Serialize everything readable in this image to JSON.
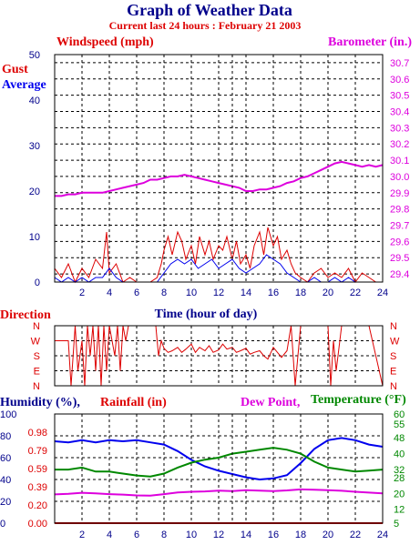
{
  "header": {
    "title": "Graph of Weather Data",
    "subtitle": "Current last 24 hours : February 21 2003"
  },
  "colors": {
    "navy": "#00008b",
    "red": "#dd0000",
    "blue": "#0000ee",
    "magenta": "#dd00dd",
    "green": "#008800"
  },
  "chart_data": [
    {
      "type": "line",
      "id": "wind",
      "label_left": "Windspeed (mph)",
      "label_right": "Barometer (in.)",
      "legend": [
        "Gust",
        "Average"
      ],
      "xlabel": "Time (hour of day)",
      "xlim": [
        0,
        24
      ],
      "x_ticks": [
        "2",
        "4",
        "6",
        "8",
        "10",
        "12",
        "14",
        "16",
        "18",
        "20",
        "22",
        "24"
      ],
      "ylim_left": [
        0,
        50
      ],
      "y_ticks_left": [
        "0",
        "10",
        "20",
        "30",
        "40",
        "50"
      ],
      "ylim_right": [
        29.35,
        30.75
      ],
      "y_ticks_right": [
        "29.4",
        "29.5",
        "29.6",
        "29.7",
        "29.8",
        "29.9",
        "30.0",
        "30.1",
        "30.2",
        "30.3",
        "30.4",
        "30.5",
        "30.6",
        "30.7"
      ],
      "grid": true,
      "now_marker_hour": 13,
      "series": [
        {
          "name": "Gust",
          "x": [
            0,
            0.5,
            1,
            1.5,
            2,
            2.5,
            3,
            3.5,
            3.8,
            4,
            4.5,
            5,
            5.5,
            6,
            6.5,
            7,
            7.5,
            7.8,
            8,
            8.3,
            8.6,
            9,
            9.3,
            9.6,
            10,
            10.3,
            10.6,
            11,
            11.3,
            11.6,
            12,
            12.3,
            12.6,
            13,
            13.3,
            13.6,
            14,
            14.3,
            14.6,
            15,
            15.3,
            15.6,
            16,
            16.3,
            16.6,
            17,
            17.3,
            17.6,
            18,
            18.5,
            19,
            19.5,
            20,
            20.5,
            21,
            21.5,
            22,
            22.5,
            23,
            23.5,
            24
          ],
          "values": [
            3,
            1,
            4,
            0,
            3,
            1,
            5,
            3,
            11,
            2,
            4,
            0,
            1,
            0,
            0,
            0,
            1,
            4,
            7,
            10,
            6,
            11,
            9,
            5,
            8,
            4,
            10,
            6,
            9,
            5,
            8,
            7,
            10,
            5,
            9,
            4,
            6,
            3,
            8,
            11,
            6,
            12,
            8,
            10,
            5,
            7,
            4,
            2,
            1,
            0,
            2,
            3,
            1,
            2,
            1,
            3,
            0,
            2,
            1,
            0,
            0
          ]
        },
        {
          "name": "Average",
          "x": [
            0,
            0.5,
            1,
            1.5,
            2,
            2.5,
            3,
            3.5,
            4,
            4.5,
            5,
            5.5,
            6,
            6.5,
            7,
            7.5,
            8,
            8.5,
            9,
            9.5,
            10,
            10.5,
            11,
            11.5,
            12,
            12.5,
            13,
            13.5,
            14,
            14.5,
            15,
            15.5,
            16,
            16.5,
            17,
            17.5,
            18,
            18.5,
            19,
            19.5,
            20,
            20.5,
            21,
            21.5,
            22,
            22.5,
            23,
            23.5,
            24
          ],
          "values": [
            1,
            0,
            1,
            0,
            1,
            0,
            1,
            1,
            3,
            1,
            0,
            0,
            0,
            0,
            0,
            0,
            2,
            4,
            5,
            4,
            5,
            3,
            4,
            5,
            3,
            4,
            5,
            3,
            2,
            3,
            4,
            6,
            5,
            4,
            2,
            1,
            0,
            0,
            1,
            0,
            0,
            1,
            0,
            1,
            0,
            0,
            0,
            0,
            0
          ]
        },
        {
          "name": "Barometer",
          "axis": "right",
          "x": [
            0,
            0.5,
            1,
            1.5,
            2,
            2.5,
            3,
            3.5,
            4,
            4.5,
            5,
            5.5,
            6,
            6.5,
            7,
            7.5,
            8,
            8.5,
            9,
            9.5,
            10,
            10.5,
            11,
            11.5,
            12,
            12.5,
            13,
            13.5,
            14,
            14.5,
            15,
            15.5,
            16,
            16.5,
            17,
            17.5,
            18,
            18.5,
            19,
            19.5,
            20,
            20.5,
            21,
            21.5,
            22,
            22.5,
            23,
            23.5,
            24
          ],
          "values": [
            29.88,
            29.88,
            29.89,
            29.89,
            29.9,
            29.9,
            29.9,
            29.9,
            29.91,
            29.92,
            29.93,
            29.94,
            29.95,
            29.96,
            29.98,
            29.98,
            29.99,
            30.0,
            30.0,
            30.01,
            30.0,
            29.99,
            29.98,
            29.97,
            29.96,
            29.95,
            29.94,
            29.93,
            29.91,
            29.91,
            29.92,
            29.92,
            29.93,
            29.94,
            29.96,
            29.97,
            29.99,
            30.0,
            30.02,
            30.04,
            30.06,
            30.08,
            30.09,
            30.08,
            30.07,
            30.06,
            30.07,
            30.06,
            30.07
          ]
        }
      ]
    },
    {
      "type": "line",
      "id": "direction",
      "label": "Direction",
      "y_ticks": [
        "N",
        "W",
        "S",
        "E",
        "N"
      ],
      "xlim": [
        0,
        24
      ],
      "grid": true,
      "series": [
        {
          "name": "Direction",
          "x": [
            0,
            1,
            1.2,
            1.5,
            1.7,
            2,
            2.2,
            2.4,
            2.6,
            2.8,
            3,
            3.2,
            3.4,
            3.6,
            3.8,
            4,
            4.2,
            4.4,
            4.6,
            4.8,
            5,
            5.2,
            5.4,
            6,
            7,
            7.4,
            7.6,
            7.8,
            8,
            8.3,
            8.6,
            9,
            9.3,
            9.6,
            10,
            10.3,
            10.6,
            11,
            11.3,
            11.6,
            12,
            12.3,
            12.6,
            13,
            13.3,
            13.6,
            14,
            14.3,
            14.6,
            15,
            15.3,
            15.6,
            16,
            16.3,
            16.6,
            17,
            17.3,
            17.6,
            18,
            18.3,
            18.6,
            19,
            19.5,
            20,
            20.2,
            20.4,
            20.6,
            21,
            21.5,
            22,
            23,
            24
          ],
          "values": [
            270,
            270,
            0,
            360,
            90,
            270,
            0,
            360,
            180,
            360,
            90,
            360,
            0,
            360,
            90,
            360,
            270,
            180,
            360,
            90,
            360,
            270,
            360,
            360,
            360,
            360,
            180,
            270,
            225,
            200,
            210,
            230,
            200,
            220,
            250,
            200,
            230,
            210,
            240,
            200,
            215,
            250,
            220,
            230,
            200,
            210,
            225,
            190,
            200,
            210,
            180,
            160,
            230,
            200,
            170,
            210,
            360,
            0,
            360,
            360,
            360,
            360,
            360,
            360,
            0,
            270,
            90,
            360,
            360,
            360,
            360,
            0
          ]
        }
      ]
    },
    {
      "type": "line",
      "id": "humidity",
      "labels": [
        "Humidity (%),",
        "Rainfall (in)",
        "Dew Point,",
        "Temperature (°F)"
      ],
      "xlim": [
        0,
        24
      ],
      "x_ticks": [
        "2",
        "4",
        "6",
        "8",
        "10",
        "12",
        "14",
        "16",
        "18",
        "20",
        "22",
        "24"
      ],
      "ylim_humidity": [
        0,
        100
      ],
      "y_ticks_humidity": [
        "0",
        "20",
        "40",
        "60",
        "80",
        "100"
      ],
      "y_ticks_rainfall": [
        "0.00",
        "0.20",
        "0.39",
        "0.59",
        "0.79",
        "0.98"
      ],
      "ylim_temp": [
        5,
        60
      ],
      "y_ticks_temp": [
        "5",
        "12",
        "20",
        "28",
        "32",
        "40",
        "48",
        "55",
        "60"
      ],
      "grid": true,
      "series": [
        {
          "name": "Humidity",
          "axis": "humidity",
          "x": [
            0,
            1,
            2,
            3,
            4,
            5,
            6,
            7,
            8,
            9,
            10,
            11,
            12,
            13,
            14,
            15,
            16,
            17,
            18,
            19,
            20,
            21,
            22,
            23,
            24
          ],
          "values": [
            75,
            74,
            76,
            74,
            76,
            75,
            76,
            74,
            72,
            66,
            58,
            52,
            48,
            45,
            42,
            40,
            41,
            44,
            55,
            68,
            76,
            78,
            76,
            72,
            70
          ]
        },
        {
          "name": "Rainfall",
          "axis": "rainfall",
          "x": [
            0,
            24
          ],
          "values": [
            0,
            0
          ]
        },
        {
          "name": "Dew Point",
          "axis": "temp",
          "x": [
            0,
            1,
            2,
            3,
            4,
            5,
            6,
            7,
            8,
            9,
            10,
            11,
            12,
            13,
            14,
            15,
            16,
            17,
            18,
            19,
            20,
            21,
            22,
            23,
            24
          ],
          "values": [
            19.5,
            19.8,
            20.3,
            20.0,
            19.6,
            19.4,
            19.0,
            18.9,
            19.6,
            20.5,
            20.8,
            21.0,
            21.4,
            21.2,
            21.6,
            21.4,
            21.2,
            21.5,
            22.0,
            21.8,
            21.6,
            21.3,
            20.8,
            20.4,
            20.0
          ]
        },
        {
          "name": "Temperature",
          "axis": "temp",
          "x": [
            0,
            1,
            2,
            3,
            4,
            5,
            6,
            7,
            8,
            9,
            10,
            11,
            12,
            13,
            14,
            15,
            16,
            17,
            18,
            19,
            20,
            21,
            22,
            23,
            24
          ],
          "values": [
            32,
            32,
            33,
            31,
            31,
            30,
            29,
            28.5,
            30,
            33,
            35.5,
            37,
            38,
            40,
            41,
            42,
            43,
            42,
            40,
            36,
            33,
            32,
            31,
            31.5,
            32
          ]
        }
      ]
    }
  ]
}
